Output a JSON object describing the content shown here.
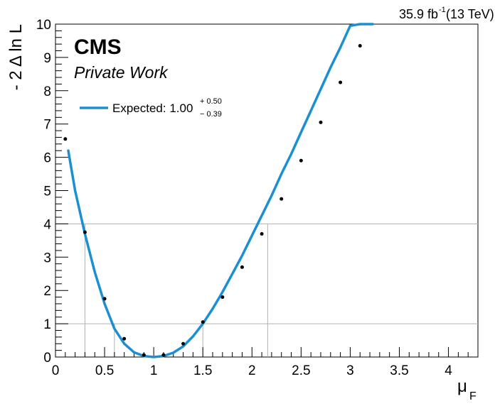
{
  "chart_data": {
    "type": "line",
    "header": {
      "lumi": "35.9 fb",
      "lumi_sup": "-1",
      "energy": " (13 TeV)"
    },
    "cms_label": "CMS",
    "sub_label": "Private Work",
    "xlabel": "μ",
    "xlabel_sub": "F",
    "ylabel": "- 2 Δ ln L",
    "xlim": [
      0,
      4.3
    ],
    "ylim": [
      0,
      10
    ],
    "x_ticks": [
      {
        "value": 0,
        "label": "0"
      },
      {
        "value": 0.5,
        "label": "0.5"
      },
      {
        "value": 1,
        "label": "1"
      },
      {
        "value": 1.5,
        "label": "1.5"
      },
      {
        "value": 2,
        "label": "2"
      },
      {
        "value": 2.5,
        "label": "2.5"
      },
      {
        "value": 3,
        "label": "3"
      },
      {
        "value": 3.5,
        "label": "3.5"
      },
      {
        "value": 4,
        "label": "4"
      }
    ],
    "y_ticks": [
      {
        "value": 0,
        "label": "0"
      },
      {
        "value": 1,
        "label": "1"
      },
      {
        "value": 2,
        "label": "2"
      },
      {
        "value": 3,
        "label": "3"
      },
      {
        "value": 4,
        "label": "4"
      },
      {
        "value": 5,
        "label": "5"
      },
      {
        "value": 6,
        "label": "6"
      },
      {
        "value": 7,
        "label": "7"
      },
      {
        "value": 8,
        "label": "8"
      },
      {
        "value": 9,
        "label": "9"
      },
      {
        "value": 10,
        "label": "10"
      }
    ],
    "grid": false,
    "reference_lines": [
      {
        "y": 1,
        "x_low": 0.6,
        "x_high": 1.5
      },
      {
        "y": 4,
        "x_low": 0.3,
        "x_high": 2.16
      }
    ],
    "legend": {
      "position": "top-left",
      "entry": "Expected: 1.00",
      "sup": "+ 0.50",
      "sub": "− 0.39"
    },
    "colors": {
      "curve": "#1a8fd1",
      "points": "#000000",
      "lines": "#b0b0b0"
    },
    "series": [
      {
        "name": "Expected: 1.00",
        "x": [
          0.13,
          0.2,
          0.3,
          0.4,
          0.5,
          0.6,
          0.7,
          0.8,
          0.9,
          1.0,
          1.1,
          1.2,
          1.3,
          1.4,
          1.5,
          1.6,
          1.7,
          1.8,
          1.9,
          2.0,
          2.1,
          2.2,
          2.3,
          2.4,
          2.5,
          2.6,
          2.7,
          2.8,
          2.9,
          3.0,
          3.1,
          3.2,
          3.23
        ],
        "y": [
          6.2,
          5.0,
          3.7,
          2.55,
          1.6,
          0.85,
          0.4,
          0.14,
          0.03,
          0.0,
          0.03,
          0.13,
          0.32,
          0.62,
          1.0,
          1.45,
          1.95,
          2.5,
          3.05,
          3.65,
          4.25,
          4.85,
          5.5,
          6.1,
          6.75,
          7.4,
          8.05,
          8.7,
          9.3,
          9.95,
          10.0,
          10.0,
          10.0
        ]
      }
    ],
    "scan_points": {
      "x": [
        0.1,
        0.3,
        0.5,
        0.7,
        0.9,
        1.1,
        1.3,
        1.5,
        1.7,
        1.9,
        2.1,
        2.3,
        2.5,
        2.7,
        2.9,
        3.1
      ],
      "y": [
        6.55,
        3.75,
        1.75,
        0.55,
        0.06,
        0.06,
        0.4,
        1.05,
        1.8,
        2.7,
        3.7,
        4.75,
        5.9,
        7.05,
        8.25,
        9.35
      ]
    }
  }
}
